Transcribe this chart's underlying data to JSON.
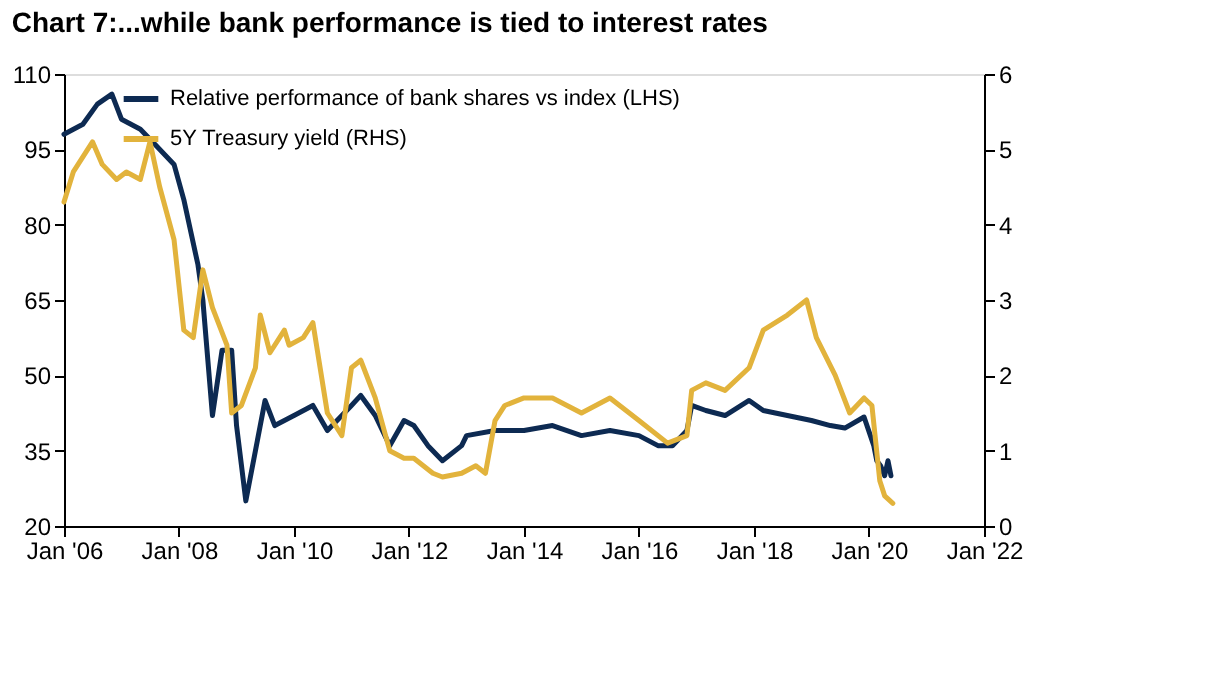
{
  "chart_data": {
    "type": "line",
    "title": "Chart 7:...while bank performance is tied to interest rates",
    "xlim": [
      "2006-01",
      "2022-01"
    ],
    "xticks": [
      {
        "value": "2006-01",
        "label": "Jan '06"
      },
      {
        "value": "2008-01",
        "label": "Jan '08"
      },
      {
        "value": "2010-01",
        "label": "Jan '10"
      },
      {
        "value": "2012-01",
        "label": "Jan '12"
      },
      {
        "value": "2014-01",
        "label": "Jan '14"
      },
      {
        "value": "2016-01",
        "label": "Jan '16"
      },
      {
        "value": "2018-01",
        "label": "Jan '18"
      },
      {
        "value": "2020-01",
        "label": "Jan '20"
      },
      {
        "value": "2022-01",
        "label": "Jan '22"
      }
    ],
    "ylim": [
      20,
      110
    ],
    "yticks": [
      20,
      35,
      50,
      65,
      80,
      95,
      110
    ],
    "y2lim": [
      0,
      6
    ],
    "y2ticks": [
      0,
      1,
      2,
      3,
      4,
      5,
      6
    ],
    "legend": "top left",
    "grid": false,
    "line_style": "solid",
    "marker": "none",
    "series": [
      {
        "name": "Relative performance of bank shares vs index (LHS)",
        "color": "#0d2a52",
        "axis": "y",
        "x": [
          "2006-01",
          "2006-05",
          "2006-08",
          "2006-11",
          "2007-01",
          "2007-05",
          "2007-08",
          "2007-12",
          "2008-02",
          "2008-05",
          "2008-06",
          "2008-08",
          "2008-10",
          "2008-12",
          "2009-01",
          "2009-03",
          "2009-05",
          "2009-07",
          "2009-09",
          "2010-01",
          "2010-05",
          "2010-08",
          "2010-11",
          "2011-01",
          "2011-03",
          "2011-06",
          "2011-09",
          "2011-12",
          "2012-02",
          "2012-05",
          "2012-08",
          "2012-12",
          "2013-01",
          "2013-07",
          "2014-01",
          "2014-07",
          "2015-01",
          "2015-07",
          "2016-01",
          "2016-05",
          "2016-08",
          "2016-11",
          "2016-12",
          "2017-03",
          "2017-07",
          "2017-12",
          "2018-03",
          "2018-08",
          "2019-01",
          "2019-05",
          "2019-08",
          "2019-12",
          "2020-02-01",
          "2020-02-20",
          "2020-03-15",
          "2020-04-10",
          "2020-05-01",
          "2020-05-20"
        ],
        "values": [
          98,
          100,
          104,
          106,
          101,
          99,
          96,
          92,
          85,
          72,
          65,
          42,
          55,
          55,
          40,
          25,
          35,
          45,
          40,
          42,
          44,
          39,
          42,
          44,
          46,
          42,
          36,
          41,
          40,
          36,
          33,
          36,
          38,
          39,
          39,
          40,
          38,
          39,
          38,
          36,
          36,
          39,
          44,
          43,
          42,
          45,
          43,
          42,
          41,
          40,
          39.5,
          41.7,
          36,
          33,
          32,
          30,
          33,
          30
        ]
      },
      {
        "name": "5Y Treasury yield (RHS)",
        "color": "#e2b33c",
        "axis": "y2",
        "x": [
          "2006-01",
          "2006-03",
          "2006-07",
          "2006-09",
          "2006-12",
          "2007-02",
          "2007-05",
          "2007-07",
          "2007-09",
          "2007-12",
          "2008-02",
          "2008-04",
          "2008-06",
          "2008-08",
          "2008-11",
          "2008-12",
          "2009-02",
          "2009-05",
          "2009-06",
          "2009-08",
          "2009-11",
          "2009-12",
          "2010-03",
          "2010-05",
          "2010-08",
          "2010-11",
          "2011-01",
          "2011-03",
          "2011-06",
          "2011-09",
          "2011-12",
          "2012-02",
          "2012-06",
          "2012-08",
          "2012-12",
          "2013-03",
          "2013-05",
          "2013-07",
          "2013-09",
          "2014-01",
          "2014-07",
          "2015-01",
          "2015-07",
          "2016-01",
          "2016-07",
          "2016-11",
          "2016-12",
          "2017-03",
          "2017-07",
          "2017-12",
          "2018-03",
          "2018-08",
          "2018-12",
          "2019-02",
          "2019-06",
          "2019-09",
          "2019-12",
          "2020-01-20",
          "2020-03-10",
          "2020-04-10",
          "2020-06-01"
        ],
        "values": [
          4.3,
          4.7,
          5.1,
          4.8,
          4.6,
          4.7,
          4.6,
          5.1,
          4.5,
          3.8,
          2.6,
          2.5,
          3.4,
          2.9,
          2.4,
          1.5,
          1.6,
          2.1,
          2.8,
          2.3,
          2.6,
          2.4,
          2.5,
          2.7,
          1.5,
          1.2,
          2.1,
          2.2,
          1.7,
          1.0,
          0.9,
          0.9,
          0.7,
          0.65,
          0.7,
          0.8,
          0.7,
          1.4,
          1.6,
          1.7,
          1.7,
          1.5,
          1.7,
          1.4,
          1.1,
          1.2,
          1.8,
          1.9,
          1.8,
          2.1,
          2.6,
          2.8,
          3.0,
          2.5,
          2.0,
          1.5,
          1.7,
          1.6,
          0.6,
          0.4,
          0.3
        ]
      }
    ]
  }
}
